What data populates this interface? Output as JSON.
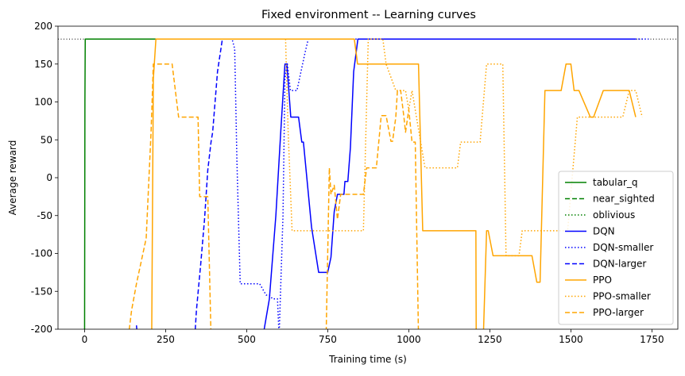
{
  "chart_data": {
    "type": "line",
    "title": "Fixed environment -- Learning curves",
    "xlabel": "Training time (s)",
    "ylabel": "Average reward",
    "xlim": [
      -82,
      1830
    ],
    "ylim": [
      -200,
      200
    ],
    "xticks": [
      0,
      250,
      500,
      750,
      1000,
      1250,
      1500,
      1750
    ],
    "yticks": [
      -200,
      -150,
      -100,
      -50,
      0,
      50,
      100,
      150,
      200
    ],
    "reference_line": {
      "y": 183,
      "style": "dotted",
      "color": "#000000"
    },
    "legend_position": "lower right",
    "series": [
      {
        "name": "tabular_q",
        "color": "#008000",
        "dash": "solid",
        "x": [
          0,
          1,
          2,
          60,
          120,
          180,
          230
        ],
        "y": [
          -200,
          100,
          183,
          183,
          183,
          183,
          183
        ]
      },
      {
        "name": "near_sighted",
        "color": "#008000",
        "dash": "dashed",
        "x": [
          150,
          170,
          195
        ],
        "y": [
          183,
          183,
          183
        ]
      },
      {
        "name": "oblivious",
        "color": "#008000",
        "dash": "dotted",
        "x": [
          185,
          200,
          215
        ],
        "y": [
          183,
          183,
          183
        ]
      },
      {
        "name": "DQN",
        "color": "#0000ff",
        "dash": "solid",
        "x": [
          160,
          163,
          550,
          570,
          590,
          605,
          618,
          624,
          636,
          660,
          670,
          675,
          700,
          722,
          750,
          760,
          770,
          780,
          790,
          800,
          803,
          812,
          820,
          830,
          843,
          860,
          900,
          1000,
          1200,
          1400,
          1600,
          1700
        ],
        "y": [
          -195,
          -210,
          -210,
          -160,
          -50,
          60,
          150,
          150,
          80,
          80,
          47,
          47,
          -65,
          -125,
          -125,
          -105,
          -45,
          -22,
          -22,
          -22,
          -5,
          -5,
          40,
          140,
          183,
          183,
          183,
          183,
          183,
          183,
          183,
          183
        ]
      },
      {
        "name": "DQN-smaller",
        "color": "#0000ff",
        "dash": "dotted",
        "x": [
          420,
          440,
          455,
          463,
          470,
          480,
          510,
          520,
          540,
          560,
          570,
          580,
          590,
          595,
          600,
          612,
          618,
          625,
          635,
          655,
          670,
          680,
          690,
          700,
          720,
          800,
          1000,
          1200,
          1400,
          1600,
          1740
        ],
        "y": [
          183,
          183,
          183,
          170,
          20,
          -140,
          -140,
          -140,
          -140,
          -155,
          -155,
          -160,
          -160,
          -160,
          -210,
          -50,
          130,
          152,
          115,
          115,
          145,
          165,
          183,
          183,
          183,
          183,
          183,
          183,
          183,
          183,
          183
        ]
      },
      {
        "name": "DQN-larger",
        "color": "#0000ff",
        "dash": "dashed",
        "x": [
          340,
          345,
          358,
          370,
          380,
          390,
          395,
          410,
          425
        ],
        "y": [
          -210,
          -175,
          -115,
          -55,
          10,
          47,
          60,
          140,
          183
        ]
      },
      {
        "name": "PPO",
        "color": "#ffa500",
        "dash": "solid",
        "x": [
          205,
          207,
          212,
          220,
          240,
          300,
          400,
          500,
          600,
          700,
          800,
          832,
          842,
          900,
          1000,
          1030,
          1043,
          1100,
          1150,
          1207,
          1208,
          1230,
          1240,
          1245,
          1260,
          1300,
          1350,
          1370,
          1380,
          1395,
          1405,
          1420,
          1470,
          1485,
          1500,
          1510,
          1525,
          1560,
          1570,
          1600,
          1680,
          1700
        ],
        "y": [
          -200,
          -210,
          130,
          183,
          183,
          183,
          183,
          183,
          183,
          183,
          183,
          183,
          150,
          150,
          150,
          150,
          -70,
          -70,
          -70,
          -70,
          -210,
          -210,
          -70,
          -70,
          -103,
          -103,
          -103,
          -103,
          -103,
          -138,
          -138,
          115,
          115,
          150,
          150,
          115,
          115,
          80,
          80,
          115,
          115,
          80
        ]
      },
      {
        "name": "PPO-smaller",
        "color": "#ffa500",
        "dash": "dotted",
        "x": [
          620,
          622,
          628,
          640,
          700,
          750,
          755,
          770,
          800,
          860,
          875,
          900,
          920,
          930,
          960,
          990,
          1000,
          1010,
          1050,
          1090,
          1120,
          1150,
          1160,
          1200,
          1220,
          1240,
          1280,
          1290,
          1300,
          1320,
          1340,
          1350,
          1380,
          1460,
          1490,
          1520,
          1560,
          1600,
          1660,
          1680,
          1700,
          1720
        ],
        "y": [
          183,
          150,
          60,
          -70,
          -70,
          -70,
          -70,
          -70,
          -70,
          -70,
          183,
          183,
          183,
          150,
          115,
          115,
          90,
          115,
          13,
          13,
          13,
          13,
          47,
          47,
          47,
          150,
          150,
          150,
          -103,
          -103,
          -103,
          -70,
          -70,
          -70,
          -70,
          80,
          80,
          80,
          80,
          115,
          115,
          80
        ]
      },
      {
        "name": "PPO-larger",
        "color": "#ffa500",
        "dash": "dashed",
        "x": [
          135,
          145,
          160,
          175,
          190,
          205,
          212,
          225,
          240,
          270,
          290,
          320,
          350,
          355,
          380,
          390,
          400,
          500,
          600,
          700,
          740,
          745,
          755,
          760,
          770,
          780,
          790,
          800,
          820,
          850,
          860,
          870,
          880,
          900,
          915,
          930,
          945,
          950,
          960,
          965,
          975,
          985,
          990,
          1000,
          1010,
          1020,
          1030,
          1060
        ],
        "y": [
          -210,
          -175,
          -140,
          -110,
          -80,
          60,
          150,
          150,
          150,
          150,
          80,
          80,
          80,
          -25,
          -25,
          -210,
          -210,
          -210,
          -210,
          -210,
          -210,
          -210,
          13,
          -22,
          -10,
          -55,
          -22,
          -22,
          -22,
          -22,
          -22,
          13,
          13,
          13,
          82,
          82,
          48,
          48,
          80,
          115,
          115,
          80,
          60,
          90,
          47,
          47,
          -210,
          -210
        ]
      }
    ]
  }
}
